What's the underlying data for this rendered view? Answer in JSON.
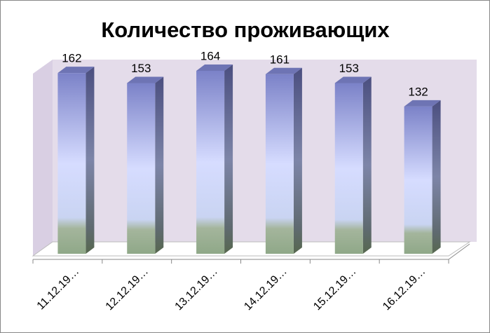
{
  "chart_data": {
    "type": "bar3d",
    "title": "Количество проживающих",
    "categories": [
      "11.12.19…",
      "12.12.19…",
      "13.12.19…",
      "14.12.19…",
      "15.12.19…",
      "16.12.19…"
    ],
    "values": [
      162,
      153,
      164,
      161,
      153,
      132
    ]
  }
}
